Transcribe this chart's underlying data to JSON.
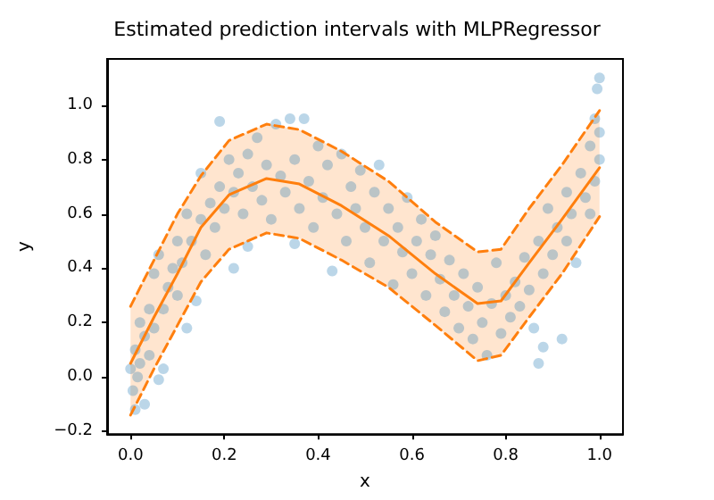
{
  "chart_data": {
    "type": "scatter",
    "title": "Estimated prediction intervals with MLPRegressor",
    "xlabel": "x",
    "ylabel": "y",
    "xlim": [
      -0.05,
      1.05
    ],
    "ylim": [
      -0.21,
      1.17
    ],
    "xticks": [
      {
        "value": 0,
        "label": "0.0"
      },
      0.2,
      0.4,
      0.6,
      0.8,
      {
        "value": 1,
        "label": "1.0"
      }
    ],
    "yticks": [
      -0.2,
      {
        "value": 0,
        "label": "0.0"
      },
      0.2,
      0.4,
      0.6,
      0.8,
      {
        "value": 1,
        "label": "1.0"
      }
    ],
    "series": [
      {
        "color": "#1f77b4",
        "marker": "circle",
        "x": [
          0.0,
          0.005,
          0.01,
          0.01,
          0.015,
          0.02,
          0.02,
          0.03,
          0.03,
          0.04,
          0.04,
          0.05,
          0.05,
          0.06,
          0.06,
          0.07,
          0.07,
          0.08,
          0.09,
          0.1,
          0.1,
          0.11,
          0.12,
          0.12,
          0.13,
          0.14,
          0.15,
          0.15,
          0.16,
          0.17,
          0.18,
          0.19,
          0.19,
          0.2,
          0.21,
          0.22,
          0.22,
          0.23,
          0.24,
          0.25,
          0.25,
          0.26,
          0.27,
          0.28,
          0.29,
          0.3,
          0.31,
          0.32,
          0.33,
          0.34,
          0.35,
          0.35,
          0.36,
          0.37,
          0.38,
          0.39,
          0.4,
          0.41,
          0.42,
          0.43,
          0.44,
          0.45,
          0.46,
          0.47,
          0.48,
          0.49,
          0.5,
          0.51,
          0.52,
          0.53,
          0.54,
          0.55,
          0.56,
          0.57,
          0.58,
          0.59,
          0.6,
          0.61,
          0.62,
          0.63,
          0.64,
          0.65,
          0.66,
          0.67,
          0.68,
          0.69,
          0.7,
          0.71,
          0.72,
          0.73,
          0.74,
          0.75,
          0.76,
          0.77,
          0.78,
          0.79,
          0.8,
          0.81,
          0.82,
          0.83,
          0.84,
          0.85,
          0.86,
          0.87,
          0.87,
          0.88,
          0.88,
          0.89,
          0.9,
          0.91,
          0.92,
          0.93,
          0.93,
          0.94,
          0.95,
          0.96,
          0.97,
          0.98,
          0.98,
          0.99,
          0.99,
          1.0,
          1.0,
          1.0,
          0.995
        ],
        "values": [
          0.03,
          -0.05,
          -0.12,
          0.1,
          0.0,
          0.05,
          0.2,
          0.15,
          -0.1,
          0.25,
          0.08,
          0.38,
          0.18,
          -0.01,
          0.45,
          0.25,
          0.03,
          0.33,
          0.4,
          0.3,
          0.5,
          0.42,
          0.6,
          0.18,
          0.5,
          0.28,
          0.58,
          0.75,
          0.45,
          0.64,
          0.55,
          0.94,
          0.7,
          0.62,
          0.8,
          0.4,
          0.68,
          0.75,
          0.6,
          0.82,
          0.48,
          0.7,
          0.88,
          0.65,
          0.78,
          0.58,
          0.93,
          0.74,
          0.68,
          0.95,
          0.8,
          0.49,
          0.62,
          0.95,
          0.72,
          0.55,
          0.85,
          0.66,
          0.78,
          0.39,
          0.6,
          0.82,
          0.5,
          0.7,
          0.62,
          0.76,
          0.55,
          0.42,
          0.68,
          0.78,
          0.5,
          0.62,
          0.34,
          0.55,
          0.46,
          0.66,
          0.38,
          0.5,
          0.58,
          0.3,
          0.45,
          0.52,
          0.36,
          0.24,
          0.43,
          0.3,
          0.18,
          0.38,
          0.26,
          0.14,
          0.33,
          0.2,
          0.08,
          0.27,
          0.42,
          0.16,
          0.3,
          0.22,
          0.35,
          0.26,
          0.44,
          0.32,
          0.18,
          0.5,
          0.05,
          0.38,
          0.11,
          0.62,
          0.45,
          0.55,
          0.14,
          0.5,
          0.68,
          0.6,
          0.42,
          0.75,
          0.66,
          0.85,
          0.6,
          0.95,
          0.72,
          0.9,
          1.1,
          0.8,
          1.06
        ]
      },
      {
        "type": "line",
        "color": "#ff7f0e",
        "line_style": "solid",
        "marker": "none",
        "x": [
          0,
          0.05,
          0.1,
          0.15,
          0.21,
          0.29,
          0.36,
          0.45,
          0.55,
          0.65,
          0.74,
          0.79,
          0.85,
          0.92,
          1.0
        ],
        "values": [
          0.05,
          0.22,
          0.38,
          0.55,
          0.67,
          0.73,
          0.71,
          0.63,
          0.52,
          0.38,
          0.27,
          0.28,
          0.42,
          0.58,
          0.77
        ],
        "lower": [
          -0.14,
          0.03,
          0.19,
          0.35,
          0.47,
          0.53,
          0.51,
          0.43,
          0.33,
          0.19,
          0.06,
          0.08,
          0.22,
          0.38,
          0.59
        ],
        "upper": [
          0.26,
          0.43,
          0.6,
          0.74,
          0.87,
          0.93,
          0.91,
          0.83,
          0.72,
          0.57,
          0.46,
          0.47,
          0.62,
          0.78,
          0.98
        ]
      },
      {
        "type": "line",
        "color": "#ff7f0e",
        "line_style": "dashed",
        "marker": "none",
        "x": [
          0,
          0.05,
          0.1,
          0.15,
          0.21,
          0.29,
          0.36,
          0.45,
          0.55,
          0.65,
          0.74,
          0.79,
          0.85,
          0.92,
          1.0
        ],
        "values": [
          -0.14,
          0.03,
          0.19,
          0.35,
          0.47,
          0.53,
          0.51,
          0.43,
          0.33,
          0.19,
          0.06,
          0.08,
          0.22,
          0.38,
          0.59
        ]
      },
      {
        "type": "line",
        "color": "#ff7f0e",
        "line_style": "dashed",
        "marker": "none",
        "x": [
          0,
          0.05,
          0.1,
          0.15,
          0.21,
          0.29,
          0.36,
          0.45,
          0.55,
          0.65,
          0.74,
          0.79,
          0.85,
          0.92,
          1.0
        ],
        "values": [
          0.26,
          0.43,
          0.6,
          0.74,
          0.87,
          0.93,
          0.91,
          0.83,
          0.72,
          0.57,
          0.46,
          0.47,
          0.62,
          0.78,
          0.98
        ]
      }
    ]
  }
}
